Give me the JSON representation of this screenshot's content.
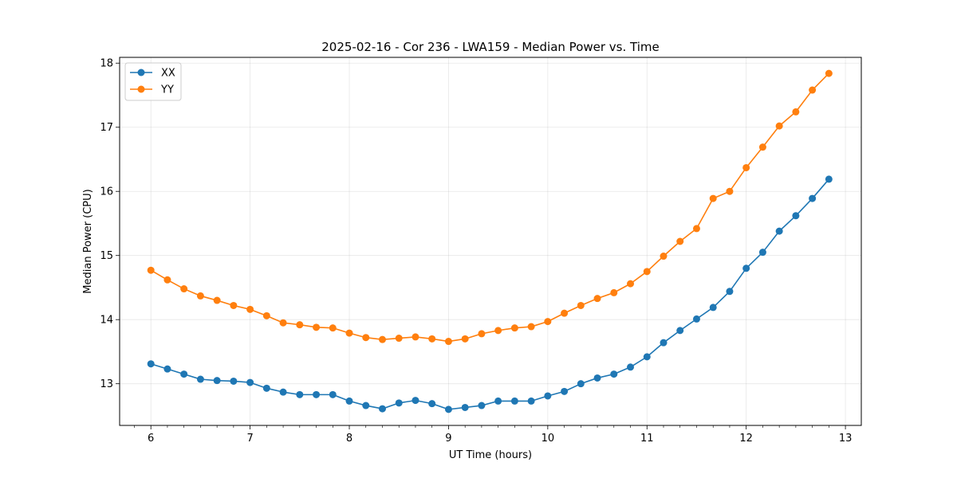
{
  "chart_data": {
    "type": "line",
    "title": "2025-02-16 - Cor 236 - LWA159 - Median Power vs. Time",
    "xlabel": "UT Time (hours)",
    "ylabel": "Median Power (CPU)",
    "xlim": [
      5.685,
      13.16
    ],
    "ylim": [
      12.35,
      18.09
    ],
    "xticks": [
      6,
      7,
      8,
      9,
      10,
      11,
      12,
      13
    ],
    "yticks": [
      13,
      14,
      15,
      16,
      17,
      18
    ],
    "grid": true,
    "legend_position": "top-left",
    "x": [
      6.0,
      6.1667,
      6.3333,
      6.5,
      6.6667,
      6.8333,
      7.0,
      7.1667,
      7.3333,
      7.5,
      7.6667,
      7.8333,
      8.0,
      8.1667,
      8.3333,
      8.5,
      8.6667,
      8.8333,
      9.0,
      9.1667,
      9.3333,
      9.5,
      9.6667,
      9.8333,
      10.0,
      10.1667,
      10.3333,
      10.5,
      10.6667,
      10.8333,
      11.0,
      11.1667,
      11.3333,
      11.5,
      11.6667,
      11.8333,
      12.0,
      12.1667,
      12.3333,
      12.5,
      12.6667,
      12.8333
    ],
    "series": [
      {
        "name": "XX",
        "color": "#1f77b4",
        "values": [
          13.31,
          13.23,
          13.15,
          13.07,
          13.05,
          13.04,
          13.02,
          12.93,
          12.87,
          12.83,
          12.83,
          12.83,
          12.73,
          12.66,
          12.61,
          12.7,
          12.74,
          12.69,
          12.6,
          12.63,
          12.66,
          12.73,
          12.73,
          12.73,
          12.81,
          12.88,
          13.0,
          13.09,
          13.15,
          13.26,
          13.42,
          13.64,
          13.83,
          14.01,
          14.19,
          14.44,
          14.8,
          15.05,
          15.38,
          15.62,
          15.89,
          16.19
        ]
      },
      {
        "name": "YY",
        "color": "#ff7f0e",
        "values": [
          14.77,
          14.62,
          14.48,
          14.37,
          14.3,
          14.22,
          14.16,
          14.06,
          13.95,
          13.92,
          13.88,
          13.87,
          13.79,
          13.72,
          13.69,
          13.71,
          13.73,
          13.7,
          13.66,
          13.7,
          13.78,
          13.83,
          13.87,
          13.89,
          13.97,
          14.1,
          14.22,
          14.33,
          14.42,
          14.56,
          14.75,
          14.99,
          15.22,
          15.42,
          15.89,
          16.0,
          16.37,
          16.69,
          17.02,
          17.24,
          17.58,
          17.84
        ]
      }
    ]
  }
}
